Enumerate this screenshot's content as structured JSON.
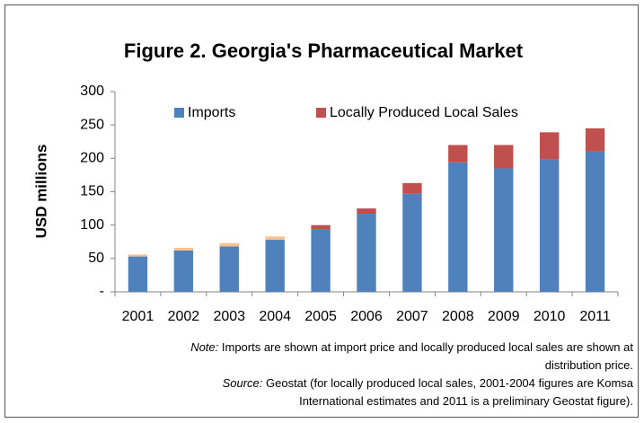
{
  "chart_data": {
    "type": "stacked_bar",
    "title": "Figure 2. Georgia's Pharmaceutical Market",
    "y_label": "USD millions",
    "categories": [
      "2001",
      "2002",
      "2003",
      "2004",
      "2005",
      "2006",
      "2007",
      "2008",
      "2009",
      "2010",
      "2011"
    ],
    "series": [
      {
        "name": "Imports",
        "color": "#4f81bd",
        "values": [
          53,
          62,
          68,
          78,
          93,
          117,
          147,
          194,
          185,
          199,
          210
        ]
      },
      {
        "name": "Locally Produced Local Sales",
        "color": "#c0504d",
        "colors": [
          "#fac090",
          "#fac090",
          "#fac090",
          "#fac090",
          "#c0504d",
          "#c0504d",
          "#c0504d",
          "#c0504d",
          "#c0504d",
          "#c0504d",
          "#c0504d"
        ],
        "values": [
          3,
          4,
          5,
          5,
          7,
          8,
          16,
          26,
          35,
          40,
          35
        ]
      }
    ],
    "ylim": [
      0,
      300
    ],
    "yticks": [
      {
        "value": 0,
        "label": "-"
      },
      50,
      100,
      150,
      200,
      250,
      300
    ],
    "legend": "top",
    "notes": [
      {
        "label": "Note:",
        "lines": [
          "Imports are shown at import price and locally produced local sales are shown at",
          "distribution price."
        ]
      },
      {
        "label": "Source:",
        "lines": [
          "Geostat (for locally produced local sales, 2001-2004 figures are Komsa",
          "International estimates and 2011 is a preliminary Geostat figure)."
        ]
      }
    ]
  }
}
